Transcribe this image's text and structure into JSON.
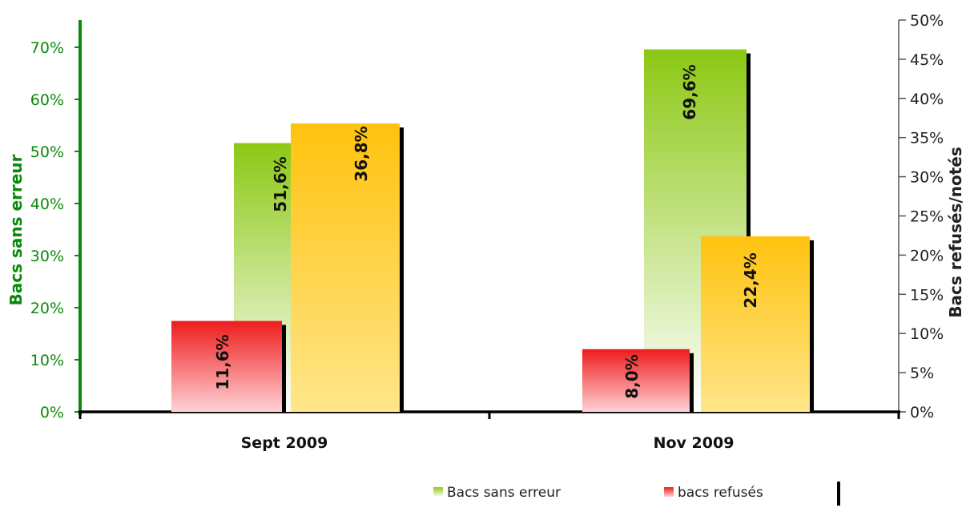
{
  "chart_data": {
    "type": "bar",
    "categories": [
      "Sept 2009",
      "Nov 2009"
    ],
    "series": [
      {
        "name": "Bacs sans erreur",
        "axis": "left",
        "values": [
          51.6,
          69.6
        ],
        "labels": [
          "51,6%",
          "69,6%"
        ],
        "color": "#8cc814"
      },
      {
        "name": "bacs refusés",
        "axis": "right",
        "values": [
          11.6,
          8.0
        ],
        "labels": [
          "11,6%",
          "8,0%"
        ],
        "color": "#ee1c1c"
      },
      {
        "name": "",
        "axis": "right",
        "values": [
          36.8,
          22.4
        ],
        "labels": [
          "36,8%",
          "22,4%"
        ],
        "color": "#ffc20e"
      }
    ],
    "ylabel_left": "Bacs sans erreur",
    "ylabel_right": "Bacs refusés/notés",
    "ylim_left": [
      0,
      70
    ],
    "ylim_right": [
      0,
      50
    ],
    "yticks_left": [
      "0%",
      "10%",
      "20%",
      "30%",
      "40%",
      "50%",
      "60%",
      "70%"
    ],
    "yticks_right": [
      "0%",
      "5%",
      "10%",
      "15%",
      "20%",
      "25%",
      "30%",
      "35%",
      "40%",
      "45%",
      "50%"
    ],
    "left_axis_color": "#0a8a0a",
    "grid": false,
    "legend_position": "bottom"
  }
}
